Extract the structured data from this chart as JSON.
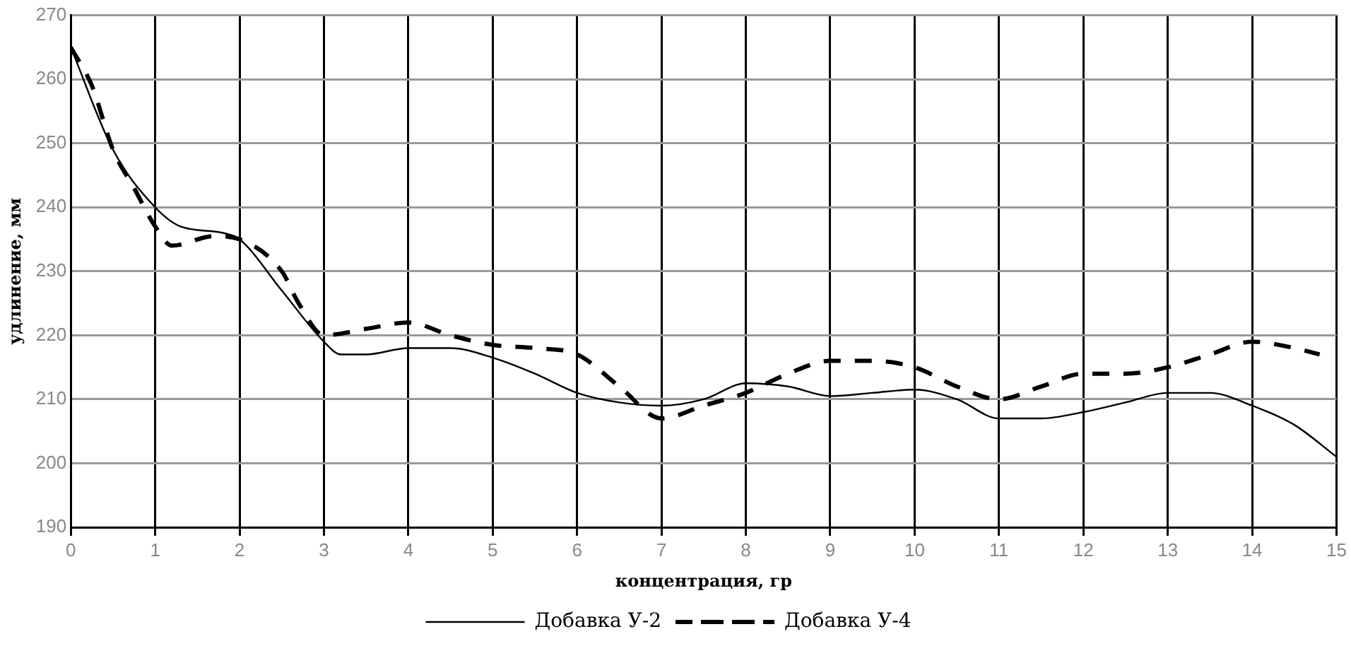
{
  "chart_data": {
    "type": "line",
    "xlabel": "концентрация, гр",
    "ylabel": "удлинение, мм",
    "xlim": [
      0,
      15
    ],
    "xticks": [
      0,
      1,
      2,
      3,
      4,
      5,
      6,
      7,
      8,
      9,
      10,
      11,
      12,
      13,
      14,
      15
    ],
    "ylim": [
      190,
      270
    ],
    "yticks": [
      190,
      200,
      210,
      220,
      230,
      240,
      250,
      260,
      270
    ],
    "grid": true,
    "legend": "bottom",
    "marker": "none",
    "series": [
      {
        "name": "Добавка У-2",
        "color": "#000000",
        "line_style": "solid",
        "x": [
          0,
          0.5,
          1,
          1.3,
          1.8,
          2,
          2.5,
          3,
          3.2,
          3.5,
          4,
          4.5,
          5,
          5.5,
          6,
          6.5,
          7,
          7.5,
          8,
          8.5,
          9,
          9.5,
          10,
          10.5,
          11,
          11.5,
          12,
          12.5,
          13,
          13.5,
          14,
          14.5,
          15
        ],
        "values": [
          265,
          249,
          240,
          237,
          236,
          235,
          227,
          219,
          217,
          217,
          218,
          218,
          216.5,
          214,
          211,
          209.5,
          209,
          210,
          212.5,
          212,
          210.5,
          211,
          211.5,
          210,
          207,
          207,
          208,
          209.5,
          211,
          211,
          209,
          206,
          201
        ]
      },
      {
        "name": "Добавка У-4",
        "color": "#000000",
        "line_style": "dashed",
        "x": [
          0,
          0.25,
          0.5,
          0.75,
          1,
          1.2,
          1.7,
          2,
          2.5,
          2.7,
          3,
          3.5,
          4,
          4.5,
          5,
          5.5,
          6,
          6.5,
          7,
          7.5,
          8,
          8.5,
          9,
          9.5,
          10,
          10.5,
          11,
          11.5,
          12,
          12.5,
          13,
          13.5,
          14,
          14.5,
          14.8
        ],
        "values": [
          265,
          259,
          249,
          243,
          237,
          234,
          235.5,
          235,
          230,
          225,
          220,
          221,
          222,
          220,
          218.5,
          218,
          217,
          212,
          207,
          209,
          211,
          214,
          216,
          216,
          215,
          212,
          210,
          212,
          214,
          214,
          215,
          217,
          219,
          218,
          217
        ]
      }
    ]
  }
}
